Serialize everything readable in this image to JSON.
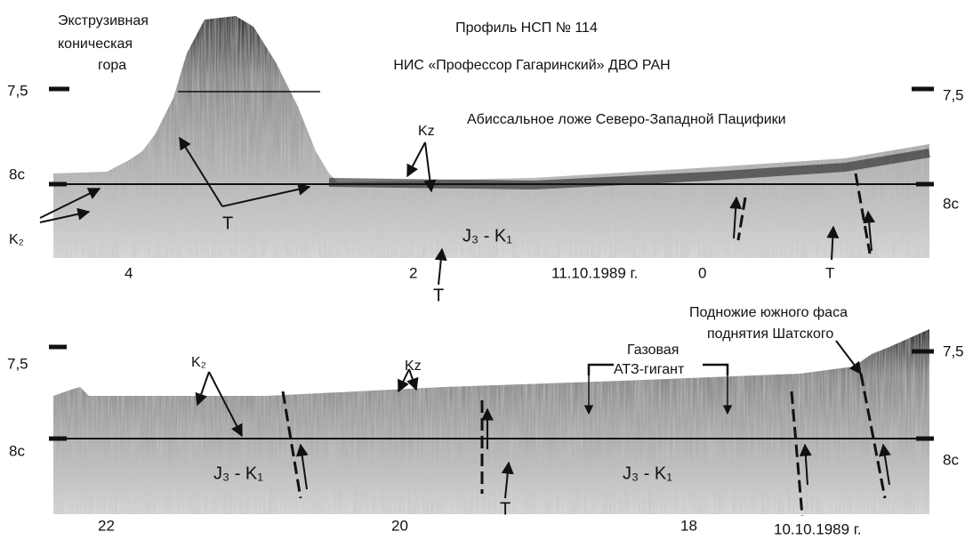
{
  "top_panel": {
    "title": "Профиль НСП № 114",
    "vessel": "НИС «Профессор Гагаринский» ДВО РАН",
    "region": "Абиссальное ложе Северо-Западной Пацифики",
    "feature": [
      "Экструзивная",
      "коническая",
      "гора"
    ],
    "scale_left": [
      "7,5",
      "8c"
    ],
    "scale_right": [
      "7,5",
      "8c"
    ],
    "labels": [
      "K₂",
      "T",
      "Kz",
      "J₃ - K₁",
      "T"
    ],
    "axis_labels": [
      "4",
      "2",
      "11.10.1989 г.",
      "0",
      "T"
    ]
  },
  "bottom_panel": {
    "feature": [
      "Подножие южного фаса",
      "поднятия Шатского"
    ],
    "anomaly": [
      "Газовая",
      "АТЗ-гигант"
    ],
    "scale_left": [
      "7,5",
      "8c"
    ],
    "scale_right": [
      "7,5",
      "8c"
    ],
    "labels": [
      "K₂",
      "Kz",
      "J₃ - K₁",
      "T",
      "J₃ - K₁"
    ],
    "axis_labels": [
      "22",
      "20",
      "18",
      "10.10.1989 г."
    ]
  }
}
